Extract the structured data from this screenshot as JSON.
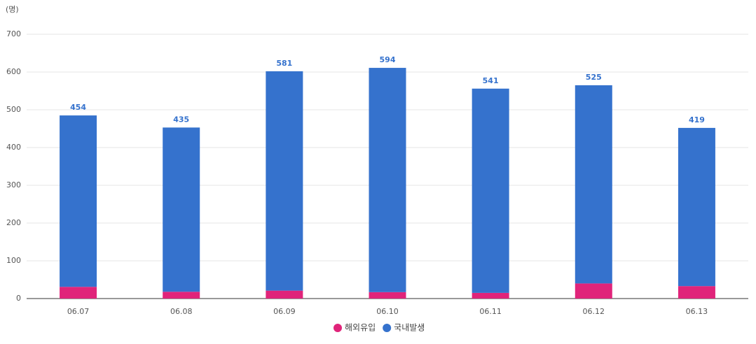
{
  "chart_data": {
    "type": "stacked-bar",
    "unit_label": "(명)",
    "categories": [
      "06.07",
      "06.08",
      "06.09",
      "06.10",
      "06.11",
      "06.12",
      "06.13"
    ],
    "series": [
      {
        "name": "해외유입",
        "color": "#e0247a",
        "values": [
          31,
          18,
          21,
          17,
          15,
          40,
          33
        ]
      },
      {
        "name": "국내발생",
        "color": "#3572cd",
        "values": [
          454,
          435,
          581,
          594,
          541,
          525,
          419
        ]
      }
    ],
    "ylim": [
      0,
      700
    ],
    "yticks": [
      0,
      100,
      200,
      300,
      400,
      500,
      600,
      700
    ],
    "grid": true
  }
}
